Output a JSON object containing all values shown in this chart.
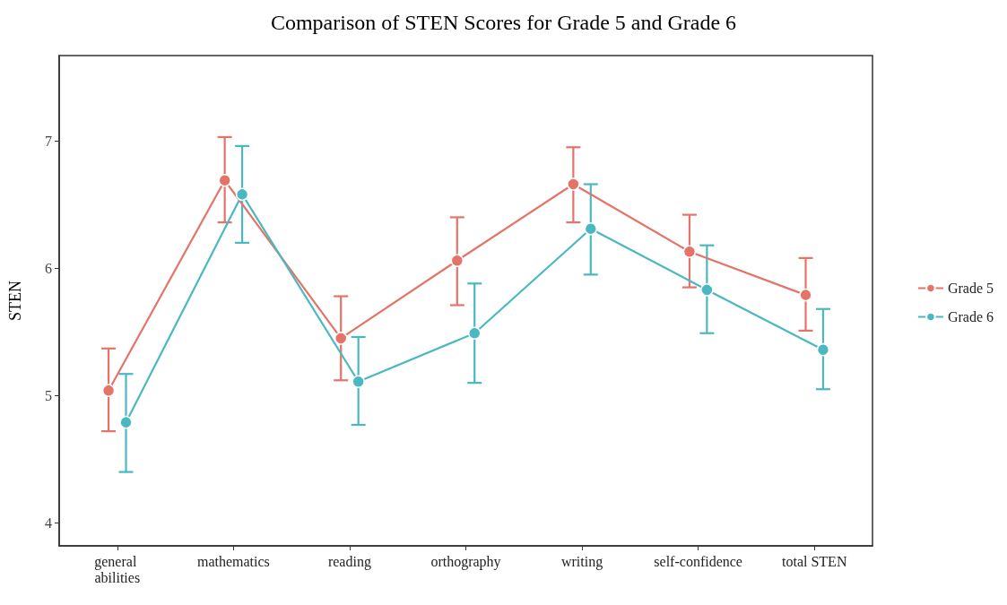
{
  "chart_data": {
    "type": "line",
    "title": "Comparison of STEN Scores for Grade 5 and Grade 6",
    "ylabel": "STEN",
    "categories": [
      "general abilities",
      "mathematics",
      "reading",
      "orthography",
      "writing",
      "self-confidence",
      "total STEN"
    ],
    "series": [
      {
        "name": "Grade 5",
        "color": "#e57368",
        "values": [
          5.04,
          6.69,
          5.45,
          6.06,
          6.66,
          6.13,
          5.79
        ],
        "errors": [
          [
            4.72,
            5.37
          ],
          [
            6.36,
            7.03
          ],
          [
            5.12,
            5.78
          ],
          [
            5.71,
            6.4
          ],
          [
            6.36,
            6.95
          ],
          [
            5.85,
            6.42
          ],
          [
            5.51,
            6.08
          ]
        ]
      },
      {
        "name": "Grade 6",
        "color": "#4ab8c1",
        "values": [
          4.79,
          6.58,
          5.11,
          5.49,
          6.31,
          5.83,
          5.36
        ],
        "errors": [
          [
            4.4,
            5.17
          ],
          [
            6.2,
            6.96
          ],
          [
            4.77,
            5.46
          ],
          [
            5.1,
            5.88
          ],
          [
            5.95,
            6.66
          ],
          [
            5.49,
            6.18
          ],
          [
            5.05,
            5.68
          ]
        ]
      }
    ],
    "ylim": [
      3.82,
      7.67
    ],
    "yticks": [
      4,
      5,
      6,
      7
    ],
    "grid": false,
    "legend": "right",
    "marker": "circle",
    "line_style": "solid"
  }
}
